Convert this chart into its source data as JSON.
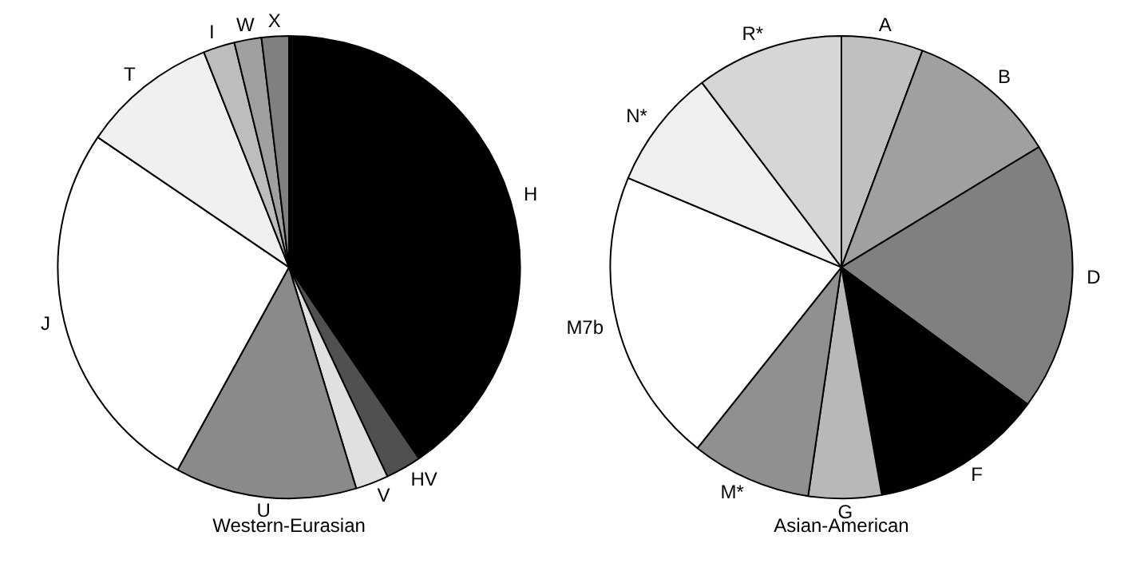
{
  "chart_data": [
    {
      "type": "pie",
      "title": "Western-Eurasian",
      "categories": [
        "H",
        "HV",
        "V",
        "U",
        "J",
        "T",
        "I",
        "W",
        "X"
      ],
      "values": [
        40.5,
        2.5,
        2.3,
        12.7,
        26.5,
        9.5,
        2.2,
        1.9,
        1.9
      ],
      "colors": [
        "#000000",
        "#505050",
        "#e0e0e0",
        "#8a8a8a",
        "#ffffff",
        "#f0f0f0",
        "#bdbdbd",
        "#a0a0a0",
        "#808080"
      ]
    },
    {
      "type": "pie",
      "title": "Asian-American",
      "categories": [
        "A",
        "B",
        "D",
        "F",
        "G",
        "M*",
        "M7b",
        "N*",
        "R*"
      ],
      "values": [
        5.7,
        10.6,
        18.8,
        12.1,
        5.1,
        8.4,
        20.6,
        8.4,
        10.3
      ],
      "colors": [
        "#c0c0c0",
        "#a0a0a0",
        "#808080",
        "#000000",
        "#b8b8b8",
        "#909090",
        "#ffffff",
        "#f0f0f0",
        "#d6d6d6"
      ]
    }
  ]
}
